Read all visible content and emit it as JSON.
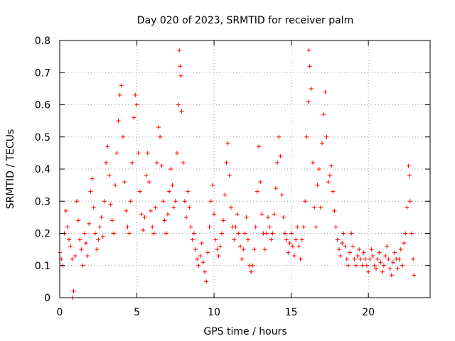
{
  "chart_data": {
    "type": "scatter",
    "title": "Day 020 of 2023, SRMTID for receiver palm",
    "xlabel": "GPS time / hours",
    "ylabel": "SRMTID / TECUs",
    "xlim": [
      0,
      24
    ],
    "ylim": [
      0,
      0.8
    ],
    "xticks": [
      0,
      5,
      10,
      15,
      20
    ],
    "xtick_labels": [
      "0",
      "5",
      "10",
      "15",
      "20"
    ],
    "yticks": [
      0,
      0.1,
      0.2,
      0.3,
      0.4,
      0.5,
      0.6,
      0.7,
      0.8
    ],
    "ytick_labels": [
      "0",
      "0.1",
      "0.2",
      "0.3",
      "0.4",
      "0.5",
      "0.6",
      "0.7",
      "0.8"
    ],
    "grid": true,
    "marker": "plus",
    "color": "#ff0000",
    "series": [
      {
        "name": "SRMTID",
        "points": [
          [
            0.0,
            0.14
          ],
          [
            0.1,
            0.12
          ],
          [
            0.2,
            0.1
          ],
          [
            0.3,
            0.2
          ],
          [
            0.4,
            0.27
          ],
          [
            0.5,
            0.22
          ],
          [
            0.6,
            0.18
          ],
          [
            0.7,
            0.16
          ],
          [
            0.8,
            0.12
          ],
          [
            0.85,
            0.0
          ],
          [
            0.9,
            0.02
          ],
          [
            1.0,
            0.13
          ],
          [
            1.1,
            0.3
          ],
          [
            1.2,
            0.24
          ],
          [
            1.3,
            0.18
          ],
          [
            1.4,
            0.15
          ],
          [
            1.5,
            0.1
          ],
          [
            1.6,
            0.2
          ],
          [
            1.7,
            0.17
          ],
          [
            1.8,
            0.13
          ],
          [
            1.9,
            0.23
          ],
          [
            2.0,
            0.33
          ],
          [
            2.1,
            0.37
          ],
          [
            2.2,
            0.28
          ],
          [
            2.3,
            0.2
          ],
          [
            2.4,
            0.15
          ],
          [
            2.5,
            0.18
          ],
          [
            2.6,
            0.22
          ],
          [
            2.7,
            0.25
          ],
          [
            2.8,
            0.19
          ],
          [
            2.9,
            0.3
          ],
          [
            3.0,
            0.42
          ],
          [
            3.1,
            0.47
          ],
          [
            3.2,
            0.38
          ],
          [
            3.3,
            0.29
          ],
          [
            3.4,
            0.24
          ],
          [
            3.5,
            0.2
          ],
          [
            3.6,
            0.35
          ],
          [
            3.7,
            0.45
          ],
          [
            3.8,
            0.55
          ],
          [
            3.9,
            0.63
          ],
          [
            4.0,
            0.66
          ],
          [
            4.1,
            0.5
          ],
          [
            4.2,
            0.36
          ],
          [
            4.3,
            0.27
          ],
          [
            4.4,
            0.22
          ],
          [
            4.5,
            0.2
          ],
          [
            4.6,
            0.3
          ],
          [
            4.7,
            0.42
          ],
          [
            4.8,
            0.56
          ],
          [
            4.9,
            0.63
          ],
          [
            5.0,
            0.6
          ],
          [
            5.1,
            0.45
          ],
          [
            5.2,
            0.33
          ],
          [
            5.3,
            0.26
          ],
          [
            5.4,
            0.21
          ],
          [
            5.5,
            0.25
          ],
          [
            5.6,
            0.38
          ],
          [
            5.7,
            0.45
          ],
          [
            5.8,
            0.36
          ],
          [
            5.9,
            0.27
          ],
          [
            6.0,
            0.22
          ],
          [
            6.1,
            0.2
          ],
          [
            6.2,
            0.28
          ],
          [
            6.3,
            0.42
          ],
          [
            6.4,
            0.53
          ],
          [
            6.5,
            0.5
          ],
          [
            6.6,
            0.41
          ],
          [
            6.7,
            0.3
          ],
          [
            6.8,
            0.24
          ],
          [
            6.9,
            0.2
          ],
          [
            7.0,
            0.26
          ],
          [
            7.1,
            0.33
          ],
          [
            7.2,
            0.4
          ],
          [
            7.3,
            0.35
          ],
          [
            7.4,
            0.28
          ],
          [
            7.5,
            0.3
          ],
          [
            7.6,
            0.45
          ],
          [
            7.7,
            0.6
          ],
          [
            7.75,
            0.77
          ],
          [
            7.8,
            0.72
          ],
          [
            7.85,
            0.69
          ],
          [
            7.9,
            0.58
          ],
          [
            8.0,
            0.42
          ],
          [
            8.1,
            0.3
          ],
          [
            8.2,
            0.25
          ],
          [
            8.3,
            0.33
          ],
          [
            8.4,
            0.28
          ],
          [
            8.5,
            0.22
          ],
          [
            8.6,
            0.18
          ],
          [
            8.7,
            0.2
          ],
          [
            8.8,
            0.15
          ],
          [
            8.9,
            0.12
          ],
          [
            9.0,
            0.1
          ],
          [
            9.1,
            0.13
          ],
          [
            9.2,
            0.17
          ],
          [
            9.3,
            0.11
          ],
          [
            9.4,
            0.08
          ],
          [
            9.5,
            0.05
          ],
          [
            9.6,
            0.14
          ],
          [
            9.7,
            0.22
          ],
          [
            9.8,
            0.3
          ],
          [
            9.9,
            0.35
          ],
          [
            10.0,
            0.26
          ],
          [
            10.1,
            0.18
          ],
          [
            10.2,
            0.15
          ],
          [
            10.3,
            0.13
          ],
          [
            10.4,
            0.16
          ],
          [
            10.5,
            0.2
          ],
          [
            10.6,
            0.24
          ],
          [
            10.7,
            0.32
          ],
          [
            10.8,
            0.42
          ],
          [
            10.9,
            0.48
          ],
          [
            11.0,
            0.38
          ],
          [
            11.1,
            0.28
          ],
          [
            11.2,
            0.22
          ],
          [
            11.3,
            0.18
          ],
          [
            11.4,
            0.22
          ],
          [
            11.5,
            0.26
          ],
          [
            11.6,
            0.2
          ],
          [
            11.7,
            0.16
          ],
          [
            11.8,
            0.12
          ],
          [
            11.9,
            0.15
          ],
          [
            12.0,
            0.2
          ],
          [
            12.1,
            0.25
          ],
          [
            12.2,
            0.18
          ],
          [
            12.3,
            0.1
          ],
          [
            12.4,
            0.08
          ],
          [
            12.5,
            0.1
          ],
          [
            12.6,
            0.15
          ],
          [
            12.7,
            0.22
          ],
          [
            12.8,
            0.33
          ],
          [
            12.9,
            0.47
          ],
          [
            13.0,
            0.36
          ],
          [
            13.1,
            0.26
          ],
          [
            13.2,
            0.2
          ],
          [
            13.3,
            0.15
          ],
          [
            13.4,
            0.2
          ],
          [
            13.5,
            0.25
          ],
          [
            13.6,
            0.22
          ],
          [
            13.7,
            0.18
          ],
          [
            13.8,
            0.2
          ],
          [
            13.9,
            0.26
          ],
          [
            14.0,
            0.34
          ],
          [
            14.1,
            0.42
          ],
          [
            14.2,
            0.5
          ],
          [
            14.3,
            0.44
          ],
          [
            14.4,
            0.32
          ],
          [
            14.5,
            0.25
          ],
          [
            14.6,
            0.2
          ],
          [
            14.7,
            0.18
          ],
          [
            14.8,
            0.14
          ],
          [
            14.9,
            0.17
          ],
          [
            15.0,
            0.2
          ],
          [
            15.1,
            0.16
          ],
          [
            15.2,
            0.13
          ],
          [
            15.3,
            0.18
          ],
          [
            15.4,
            0.22
          ],
          [
            15.5,
            0.16
          ],
          [
            15.6,
            0.12
          ],
          [
            15.7,
            0.18
          ],
          [
            15.8,
            0.22
          ],
          [
            15.9,
            0.3
          ],
          [
            16.0,
            0.5
          ],
          [
            16.1,
            0.61
          ],
          [
            16.15,
            0.77
          ],
          [
            16.2,
            0.72
          ],
          [
            16.3,
            0.65
          ],
          [
            16.4,
            0.42
          ],
          [
            16.5,
            0.28
          ],
          [
            16.6,
            0.22
          ],
          [
            16.7,
            0.35
          ],
          [
            16.8,
            0.4
          ],
          [
            16.9,
            0.28
          ],
          [
            17.0,
            0.48
          ],
          [
            17.1,
            0.57
          ],
          [
            17.2,
            0.64
          ],
          [
            17.3,
            0.5
          ],
          [
            17.4,
            0.36
          ],
          [
            17.5,
            0.38
          ],
          [
            17.6,
            0.41
          ],
          [
            17.7,
            0.33
          ],
          [
            17.8,
            0.27
          ],
          [
            17.9,
            0.22
          ],
          [
            18.0,
            0.18
          ],
          [
            18.1,
            0.15
          ],
          [
            18.2,
            0.13
          ],
          [
            18.3,
            0.17
          ],
          [
            18.4,
            0.2
          ],
          [
            18.5,
            0.16
          ],
          [
            18.6,
            0.12
          ],
          [
            18.7,
            0.1
          ],
          [
            18.8,
            0.14
          ],
          [
            18.9,
            0.2
          ],
          [
            19.0,
            0.16
          ],
          [
            19.1,
            0.12
          ],
          [
            19.2,
            0.1
          ],
          [
            19.3,
            0.13
          ],
          [
            19.4,
            0.15
          ],
          [
            19.5,
            0.12
          ],
          [
            19.6,
            0.1
          ],
          [
            19.7,
            0.14
          ],
          [
            19.8,
            0.12
          ],
          [
            19.9,
            0.1
          ],
          [
            20.0,
            0.08
          ],
          [
            20.1,
            0.12
          ],
          [
            20.2,
            0.15
          ],
          [
            20.3,
            0.13
          ],
          [
            20.4,
            0.1
          ],
          [
            20.5,
            0.09
          ],
          [
            20.6,
            0.12
          ],
          [
            20.7,
            0.14
          ],
          [
            20.8,
            0.11
          ],
          [
            20.9,
            0.08
          ],
          [
            21.0,
            0.1
          ],
          [
            21.1,
            0.13
          ],
          [
            21.2,
            0.16
          ],
          [
            21.3,
            0.12
          ],
          [
            21.4,
            0.09
          ],
          [
            21.5,
            0.07
          ],
          [
            21.6,
            0.11
          ],
          [
            21.7,
            0.14
          ],
          [
            21.8,
            0.12
          ],
          [
            21.9,
            0.09
          ],
          [
            22.0,
            0.12
          ],
          [
            22.1,
            0.15
          ],
          [
            22.2,
            0.1
          ],
          [
            22.3,
            0.17
          ],
          [
            22.4,
            0.2
          ],
          [
            22.5,
            0.28
          ],
          [
            22.6,
            0.41
          ],
          [
            22.65,
            0.38
          ],
          [
            22.7,
            0.3
          ],
          [
            22.8,
            0.2
          ],
          [
            22.9,
            0.12
          ],
          [
            22.95,
            0.07
          ]
        ]
      }
    ]
  }
}
